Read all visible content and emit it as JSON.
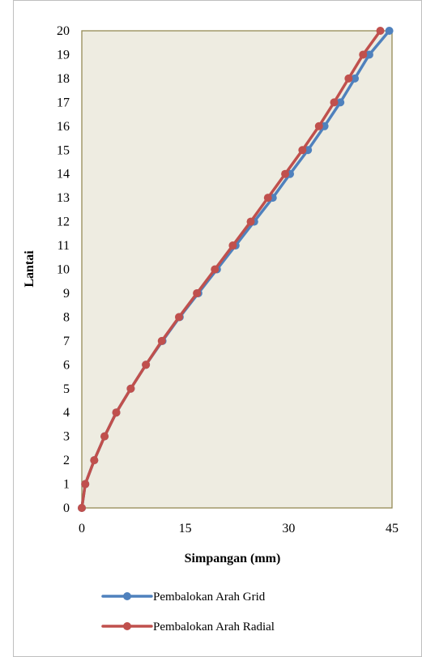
{
  "chart_data": {
    "type": "line",
    "title": "",
    "xlabel": "Simpangan (mm)",
    "ylabel": "Lantai",
    "xlim": [
      0,
      45
    ],
    "ylim": [
      0,
      20
    ],
    "x_ticks": [
      "0",
      "15",
      "30",
      "45"
    ],
    "y_ticks": [
      "0",
      "1",
      "2",
      "3",
      "4",
      "5",
      "6",
      "7",
      "8",
      "9",
      "10",
      "11",
      "12",
      "13",
      "14",
      "15",
      "16",
      "17",
      "18",
      "19",
      "20"
    ],
    "grid": false,
    "legend_position": "bottom",
    "series": [
      {
        "name": "Pembalokan Arah Grid",
        "color": "#4f81bd",
        "points": [
          [
            0,
            0
          ],
          [
            0.5,
            1
          ],
          [
            1.8,
            2
          ],
          [
            3.3,
            3
          ],
          [
            5.0,
            4
          ],
          [
            7.1,
            5
          ],
          [
            9.3,
            6
          ],
          [
            11.7,
            7
          ],
          [
            14.2,
            8
          ],
          [
            16.9,
            9
          ],
          [
            19.6,
            10
          ],
          [
            22.3,
            11
          ],
          [
            25.0,
            12
          ],
          [
            27.7,
            13
          ],
          [
            30.2,
            14
          ],
          [
            32.8,
            15
          ],
          [
            35.2,
            16
          ],
          [
            37.5,
            17
          ],
          [
            39.6,
            18
          ],
          [
            41.7,
            19
          ],
          [
            44.6,
            20
          ]
        ]
      },
      {
        "name": "Pembalokan Arah Radial",
        "color": "#c0504d",
        "points": [
          [
            0,
            0
          ],
          [
            0.5,
            1
          ],
          [
            1.8,
            2
          ],
          [
            3.3,
            3
          ],
          [
            5.0,
            4
          ],
          [
            7.1,
            5
          ],
          [
            9.3,
            6
          ],
          [
            11.6,
            7
          ],
          [
            14.1,
            8
          ],
          [
            16.7,
            9
          ],
          [
            19.3,
            10
          ],
          [
            21.9,
            11
          ],
          [
            24.5,
            12
          ],
          [
            27.0,
            13
          ],
          [
            29.5,
            14
          ],
          [
            32.0,
            15
          ],
          [
            34.4,
            16
          ],
          [
            36.6,
            17
          ],
          [
            38.7,
            18
          ],
          [
            40.8,
            19
          ],
          [
            43.3,
            20
          ]
        ]
      }
    ]
  }
}
